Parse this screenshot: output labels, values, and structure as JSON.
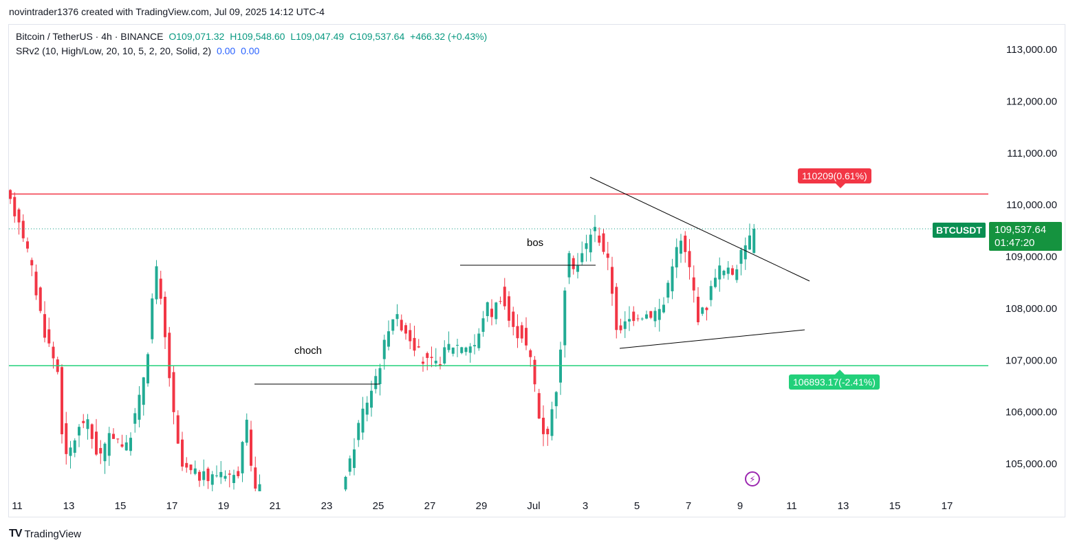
{
  "header": {
    "attribution": "novintrader1376 created with TradingView.com, Jul 09, 2025 14:12 UTC-4"
  },
  "legend": {
    "symbol": "Bitcoin / TetherUS · 4h · BINANCE",
    "open": "O109,071.32",
    "high": "H109,548.60",
    "low": "L109,047.49",
    "close": "C109,537.64",
    "change": "+466.32 (+0.43%)",
    "indicator": "SRv2 (10, High/Low, 20, 10, 5, 2, 20, Solid, 2)",
    "indicator_v1": "0.00",
    "indicator_v2": "0.00"
  },
  "price_axis": {
    "labels": [
      "113,000.00",
      "112,000.00",
      "111,000.00",
      "110,000.00",
      "109,000.00",
      "108,000.00",
      "107,000.00",
      "106,000.00",
      "105,000.00"
    ]
  },
  "time_axis": {
    "labels": [
      "11",
      "13",
      "15",
      "17",
      "19",
      "21",
      "23",
      "25",
      "27",
      "29",
      "Jul",
      "3",
      "5",
      "7",
      "9",
      "11",
      "13",
      "15",
      "17"
    ]
  },
  "tags": {
    "resistance": "110209(0.61%)",
    "support": "106893.17(-2.41%)",
    "symbol": "BTCUSDT",
    "last_price": "109,537.64",
    "countdown": "01:47:20"
  },
  "annotations": {
    "bos": "bos",
    "choch": "choch"
  },
  "brand": {
    "name": "TradingView",
    "logo": "TV"
  },
  "colors": {
    "up": "#089981",
    "candle_up": "#22ab94",
    "candle_down": "#f23645",
    "resistance": "#f23645",
    "support": "#22d07a"
  },
  "chart_data": {
    "type": "candlestick",
    "symbol": "Bitcoin / TetherUS",
    "interval": "4h",
    "ylim": [
      104400,
      113500
    ],
    "resistance": 110209,
    "support": 106893.17,
    "last": 109537.64
  }
}
